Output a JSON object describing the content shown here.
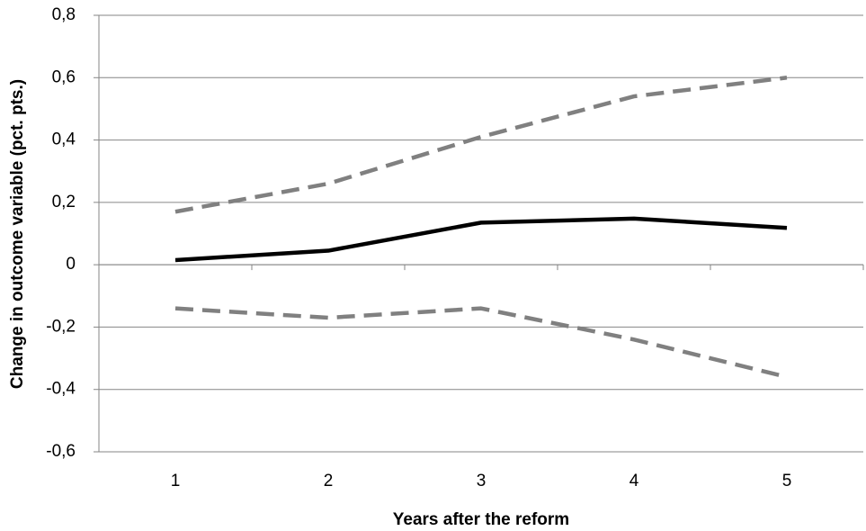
{
  "chart_data": {
    "type": "line",
    "xlabel": "Years after the reform",
    "ylabel": "Change in outcome variable (pct. pts.)",
    "categories": [
      "1",
      "2",
      "3",
      "4",
      "5"
    ],
    "series": [
      {
        "color": "#808080",
        "dashed": true,
        "values": [
          0.17,
          0.26,
          0.41,
          0.54,
          0.6
        ]
      },
      {
        "color": "#000000",
        "dashed": false,
        "values": [
          0.015,
          0.045,
          0.135,
          0.148,
          0.118
        ]
      },
      {
        "color": "#808080",
        "dashed": true,
        "values": [
          -0.14,
          -0.17,
          -0.14,
          -0.24,
          -0.36
        ]
      }
    ],
    "ylim": [
      -0.6,
      0.8
    ],
    "yticks": [
      {
        "value": -0.6,
        "label": "-0,6"
      },
      {
        "value": -0.4,
        "label": "-0,4"
      },
      {
        "value": -0.2,
        "label": "-0,2"
      },
      0,
      {
        "value": 0.2,
        "label": "0,2"
      },
      {
        "value": 0.4,
        "label": "0,4"
      },
      {
        "value": 0.6,
        "label": "0,6"
      },
      {
        "value": 0.8,
        "label": "0,8"
      }
    ],
    "grid": true
  }
}
